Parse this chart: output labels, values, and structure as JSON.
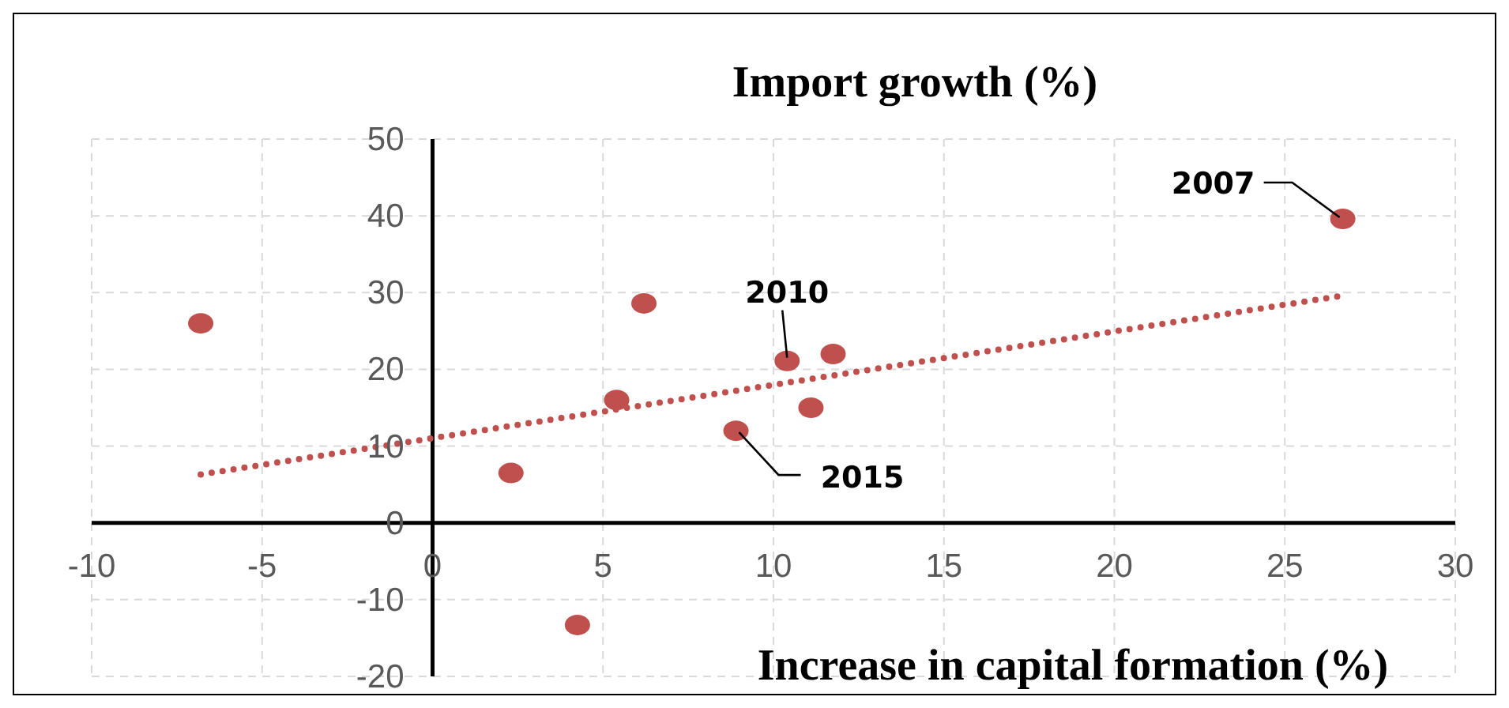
{
  "chart_data": {
    "type": "scatter",
    "title": "Import growth (%)",
    "xlabel": "Increase in capital formation (%)",
    "series": [
      {
        "color": "#c0504d",
        "x": [
          -6.8,
          2.3,
          4.25,
          5.4,
          6.2,
          8.9,
          10.4,
          11.1,
          11.75,
          26.7
        ],
        "values": [
          26,
          6.5,
          -13.3,
          16,
          28.6,
          12,
          21.1,
          15,
          22,
          39.6
        ]
      },
      {
        "type": "line",
        "color": "#c0504d",
        "line_style": "dotted",
        "marker": "none",
        "x": [
          -6.8,
          26.7
        ],
        "values": [
          6.3,
          29.6
        ]
      }
    ],
    "xlim": [
      -10,
      30
    ],
    "xticks": [
      -10,
      -5,
      0,
      5,
      10,
      15,
      20,
      25,
      30
    ],
    "ylim": [
      -20,
      50
    ],
    "yticks": [
      -20,
      -10,
      0,
      10,
      20,
      30,
      40,
      50
    ],
    "grid": true,
    "marker": "circle",
    "annotations": [
      {
        "text": "2007",
        "x": 26.7,
        "y": 39.6
      },
      {
        "text": "2010",
        "x": 10.4,
        "y": 21.1
      },
      {
        "text": "2015",
        "x": 8.9,
        "y": 12
      }
    ]
  }
}
